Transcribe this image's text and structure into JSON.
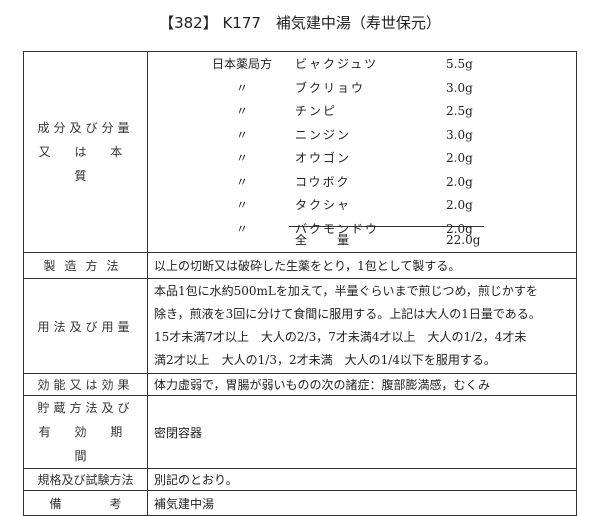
{
  "title": "【382】 K177　補気建中湯（寿世保元）",
  "rows": {
    "ingredients": {
      "label": [
        "成分及び分量",
        "又 は 本 質"
      ],
      "items": [
        {
          "src": "日本薬局方",
          "name": "ビャクジュツ",
          "amount": "5.5g"
        },
        {
          "src": "〃",
          "name": "ブクリョウ",
          "amount": "3.0g"
        },
        {
          "src": "〃",
          "name": "チンピ",
          "amount": "2.5g"
        },
        {
          "src": "〃",
          "name": "ニンジン",
          "amount": "3.0g"
        },
        {
          "src": "〃",
          "name": "オウゴン",
          "amount": "2.0g"
        },
        {
          "src": "〃",
          "name": "コウボク",
          "amount": "2.0g"
        },
        {
          "src": "〃",
          "name": "タクシャ",
          "amount": "2.0g"
        },
        {
          "src": "〃",
          "name": "バクモンドウ",
          "amount": "2.0g"
        }
      ],
      "total_label": "全　　量",
      "total": "22.0g"
    },
    "manufacture": {
      "label": "製造方法",
      "text": "以上の切断又は破砕した生薬をとり，1包として製する。"
    },
    "dosage": {
      "label": "用法及び用量",
      "lines": [
        "本品1包に水約500mLを加えて，半量ぐらいまで煎じつめ，煎じかすを",
        "除き，煎液を3回に分けて食間に服用する。上記は大人の1日量である。",
        "15才未満7才以上　大人の2/3，7才未満4才以上　大人の1/2，4才未",
        "満2才以上　大人の1/3，2才未満　大人の1/4以下を服用する。"
      ]
    },
    "efficacy": {
      "label": "効能又は効果",
      "text": "体力虚弱で，胃腸が弱いものの次の諸症：腹部膨満感，むくみ"
    },
    "storage": {
      "label": [
        "貯蔵方法及び",
        "有 効 期 間"
      ],
      "text": "密閉容器"
    },
    "spec": {
      "label": "規格及び試験方法",
      "text": "別記のとおり。"
    },
    "remarks": {
      "label": "備　　　　考",
      "text": "補気建中湯"
    }
  }
}
